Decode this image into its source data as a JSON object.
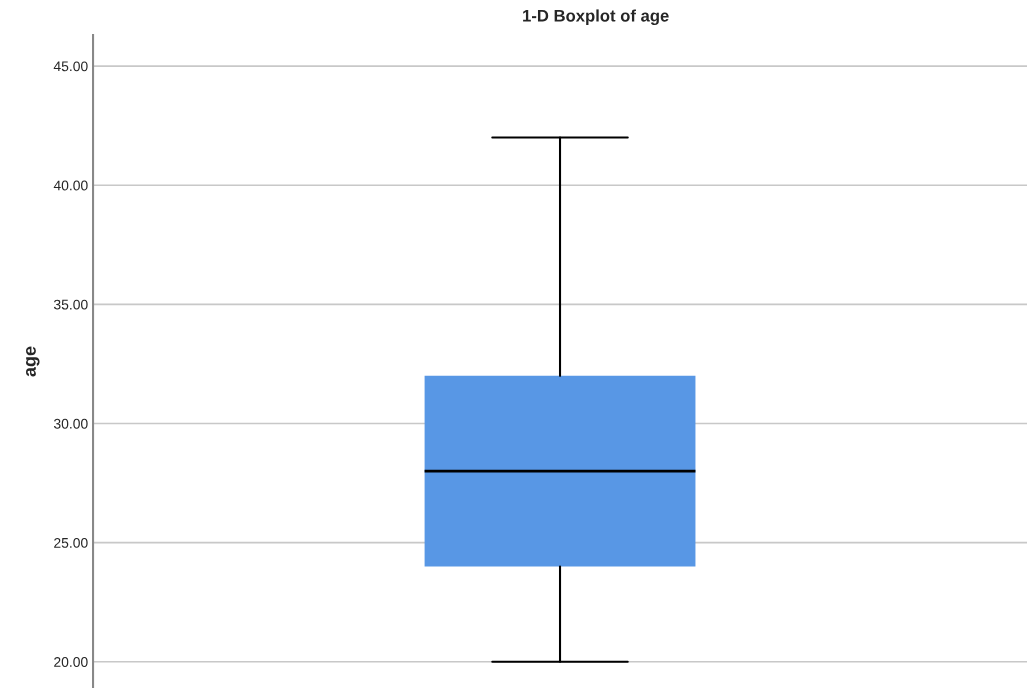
{
  "chart_data": {
    "type": "box",
    "title": "1-D Boxplot of age",
    "ylabel": "age",
    "categories": [
      null
    ],
    "boxes": [
      {
        "low": 20,
        "q1": 24,
        "median": 28,
        "q3": 32,
        "high": 42
      }
    ],
    "color": "#5897e5",
    "ylim": [
      18.9,
      46.3
    ],
    "yticks": [
      {
        "value": 20,
        "label": "20.00"
      },
      {
        "value": 25,
        "label": "25.00"
      },
      {
        "value": 30,
        "label": "30.00"
      },
      {
        "value": 35,
        "label": "35.00"
      },
      {
        "value": 40,
        "label": "40.00"
      },
      {
        "value": 45,
        "label": "45.00"
      }
    ],
    "grid": "y",
    "tick_labels": "y"
  }
}
